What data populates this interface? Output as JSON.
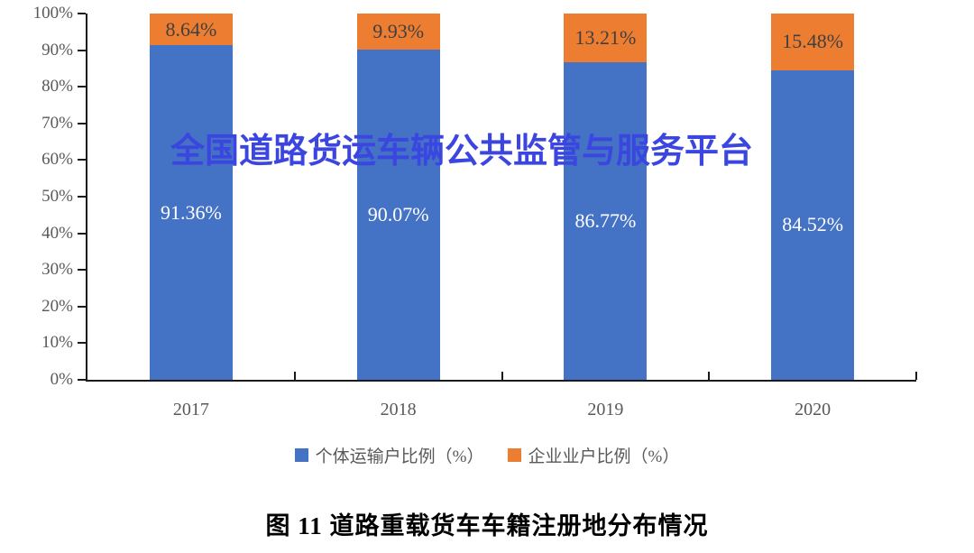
{
  "chart_data": {
    "type": "bar",
    "variant": "stacked-column",
    "categories": [
      "2017",
      "2018",
      "2019",
      "2020"
    ],
    "series": [
      {
        "name": "个体运输户比例（%）",
        "color": "#4472c4",
        "label_color": "#ffffff",
        "values": [
          91.36,
          90.07,
          86.77,
          84.52
        ],
        "data_labels": [
          "91.36%",
          "90.07%",
          "86.77%",
          "84.52%"
        ]
      },
      {
        "name": "企业业户比例（%）",
        "color": "#ed7d31",
        "label_color": "#404040",
        "values": [
          8.64,
          9.93,
          13.21,
          15.48
        ],
        "data_labels": [
          "8.64%",
          "9.93%",
          "13.21%",
          "15.48%"
        ]
      }
    ],
    "ylim": [
      0,
      100
    ],
    "yticks": [
      "0%",
      "10%",
      "20%",
      "30%",
      "40%",
      "50%",
      "60%",
      "70%",
      "80%",
      "90%",
      "100%"
    ],
    "grid": false,
    "legend_position": "bottom",
    "axis_color": "#1a1a1a",
    "tick_label_color": "#595959"
  },
  "watermark": {
    "text": "全国道路货运车辆公共监管与服务平台",
    "color": "#3b46e0"
  },
  "caption": {
    "text": "图 11 道路重载货车车籍注册地分布情况"
  }
}
